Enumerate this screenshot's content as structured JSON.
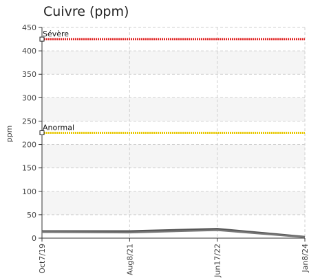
{
  "chart_data": {
    "type": "line",
    "title": "Cuivre (ppm)",
    "xlabel": "",
    "ylabel": "ppm",
    "ylim": [
      0,
      450
    ],
    "yticks": [
      0,
      50,
      100,
      150,
      200,
      250,
      300,
      350,
      400,
      450
    ],
    "x": [
      "Oct7/19",
      "Aug8/21",
      "Jun17/22",
      "Jan8/24"
    ],
    "grid": true,
    "series": [
      {
        "values": [
          15,
          15,
          20,
          3
        ],
        "color": "#555555"
      },
      {
        "values": [
          13,
          12,
          17,
          2
        ],
        "color": "#777777"
      }
    ],
    "thresholds": [
      {
        "label": "Sévère",
        "value": 425,
        "color": "#e02020"
      },
      {
        "label": "Anormal",
        "value": 225,
        "color": "#e8c800"
      }
    ]
  }
}
